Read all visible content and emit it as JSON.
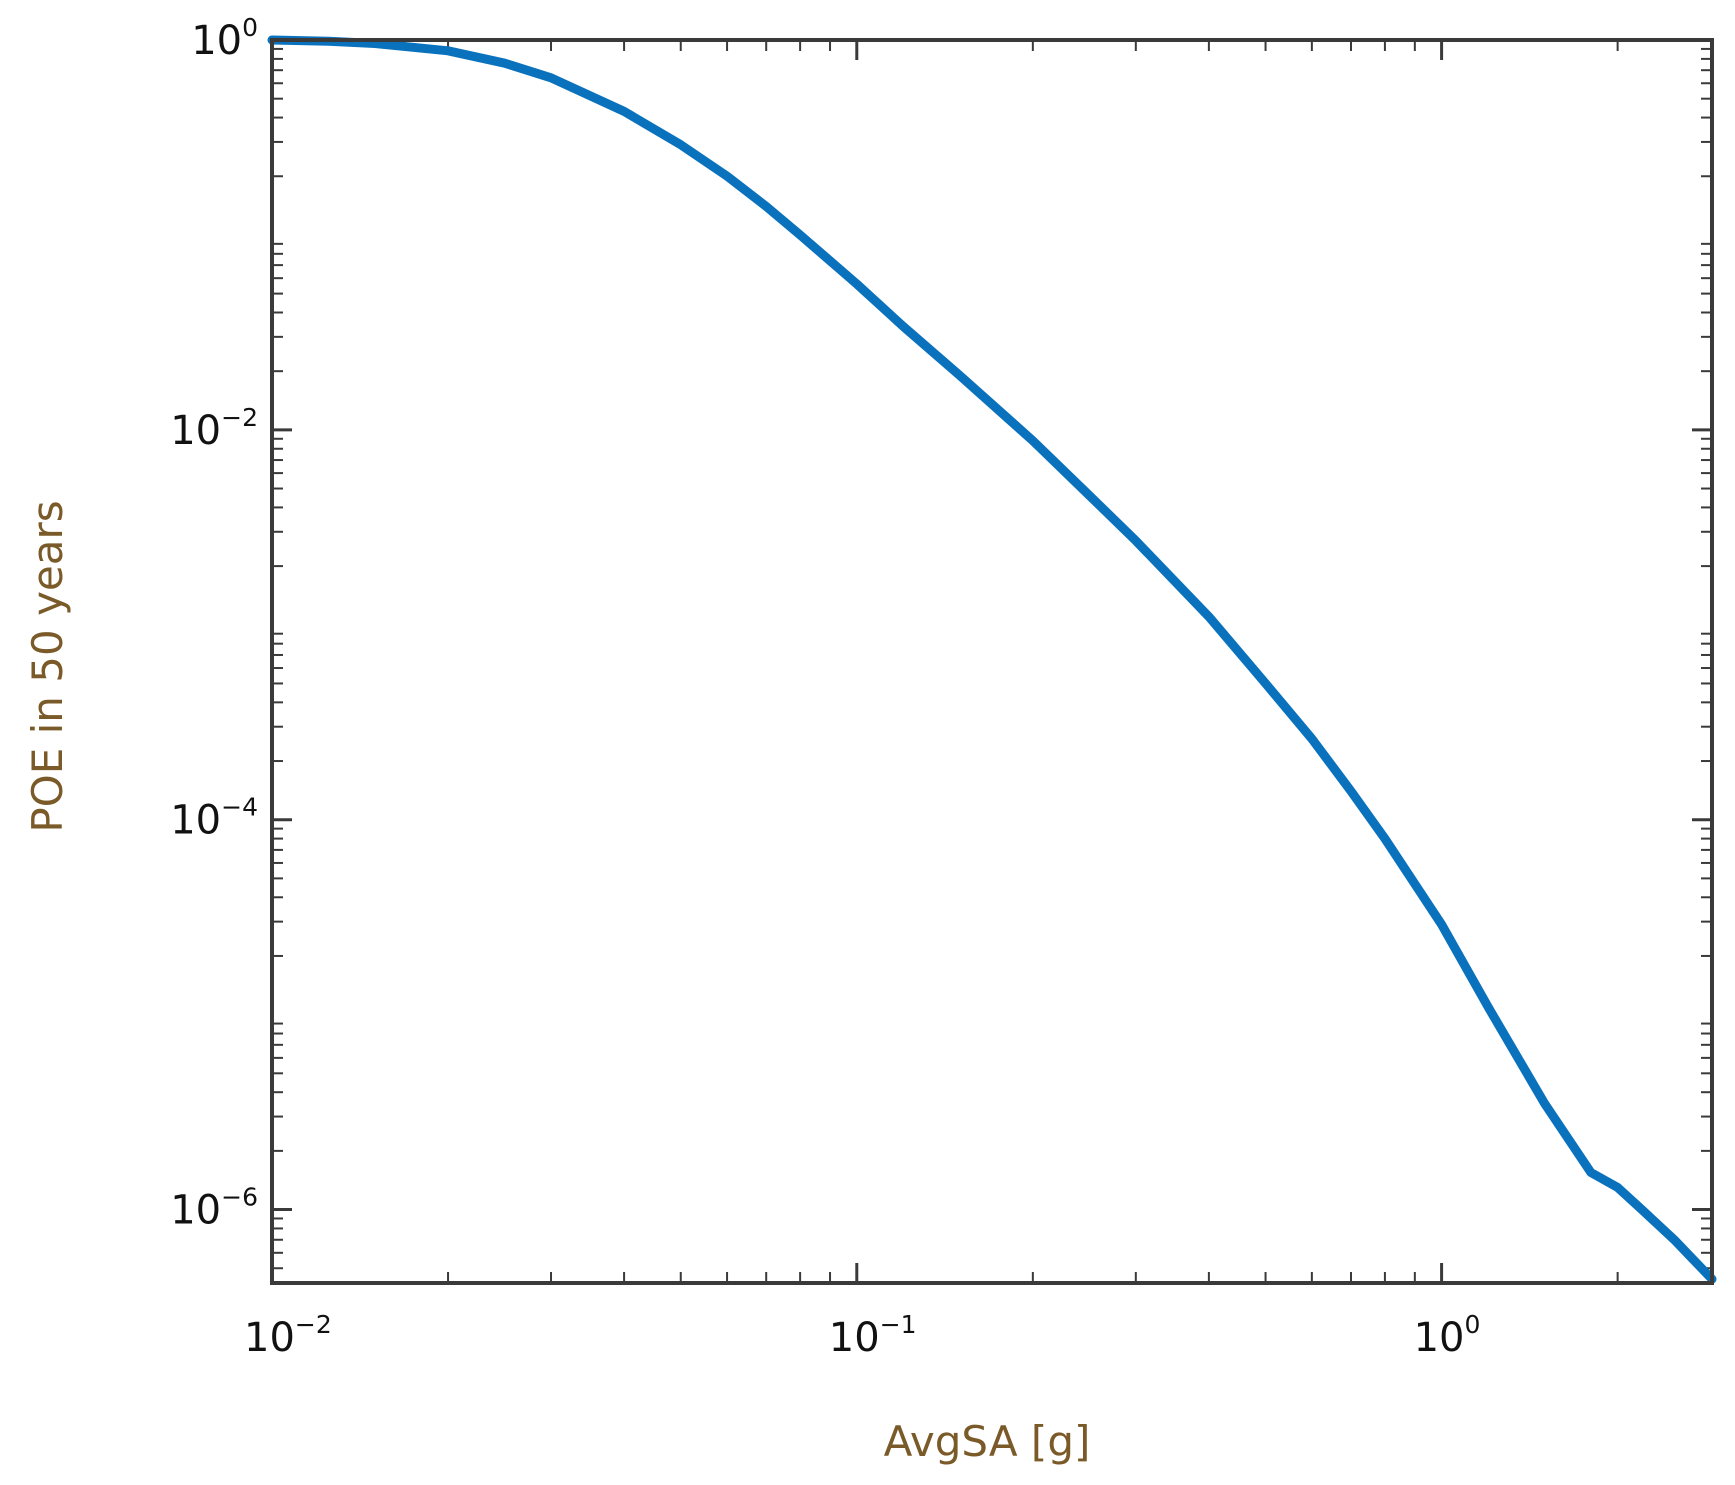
{
  "chart_data": {
    "type": "line",
    "xlabel": "AvgSA [g]",
    "ylabel": "POE in 50 years",
    "x_scale": "log",
    "y_scale": "log",
    "xlim": [
      0.01,
      2.9
    ],
    "ylim": [
      4.2e-07,
      1
    ],
    "x_ticks": [
      {
        "value": 0.01,
        "base": "10",
        "exp": "−2"
      },
      {
        "value": 0.1,
        "base": "10",
        "exp": "−1"
      },
      {
        "value": 1,
        "base": "10",
        "exp": "0"
      }
    ],
    "y_ticks": [
      {
        "value": 1,
        "base": "10",
        "exp": "0"
      },
      {
        "value": 0.01,
        "base": "10",
        "exp": "−2"
      },
      {
        "value": 0.0001,
        "base": "10",
        "exp": "−4"
      },
      {
        "value": 1e-06,
        "base": "10",
        "exp": "−6"
      }
    ],
    "grid": false,
    "colors": {
      "line": "#0a72bd",
      "axis": "#3a3a3a",
      "axis_title": "#7a5a28",
      "tick_text": "#111111"
    },
    "series": [
      {
        "x": [
          0.01,
          0.0125,
          0.015,
          0.02,
          0.025,
          0.03,
          0.04,
          0.05,
          0.06,
          0.07,
          0.08,
          0.1,
          0.12,
          0.15,
          0.2,
          0.25,
          0.3,
          0.4,
          0.5,
          0.6,
          0.7,
          0.8,
          1.0,
          1.2,
          1.5,
          1.8,
          2.0,
          2.2,
          2.5,
          2.7,
          2.9
        ],
        "y": [
          1.0,
          0.985,
          0.96,
          0.88,
          0.76,
          0.64,
          0.43,
          0.29,
          0.2,
          0.14,
          0.1,
          0.056,
          0.034,
          0.019,
          0.0088,
          0.0046,
          0.0027,
          0.0011,
          0.0005,
          0.00026,
          0.00014,
          8e-05,
          2.9e-05,
          1.1e-05,
          3.5e-06,
          1.55e-06,
          1.3e-06,
          1e-06,
          7e-07,
          5.5e-07,
          4.4e-07
        ]
      }
    ]
  }
}
